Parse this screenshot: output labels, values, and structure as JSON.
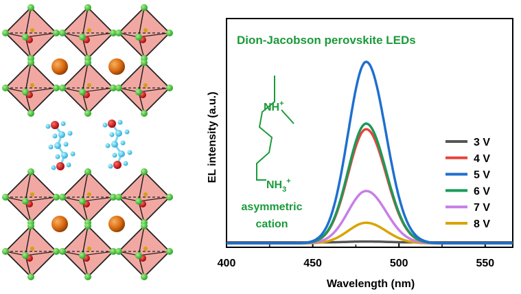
{
  "figure": {
    "title": "Dion-Jacobson perovskite LEDs",
    "title_color": "#1a9a3a",
    "cation_label": [
      "asymmetric",
      "cation"
    ],
    "cation_label_color": "#1a9a3a",
    "molecule_labels": {
      "top": "NH",
      "top_sup": "+",
      "bottom": "NH",
      "bottom_sub": "3",
      "bottom_sup": "+"
    }
  },
  "chart_data": {
    "type": "line",
    "title": "Dion-Jacobson perovskite LEDs",
    "xlabel": "Wavelength (nm)",
    "ylabel": "EL intensity (a.u.)",
    "xlim": [
      400,
      566
    ],
    "ylim": [
      0,
      1.0
    ],
    "xticks": [
      "400",
      "450",
      "500",
      "550"
    ],
    "legend_position": "right",
    "y_tick_labels": false,
    "peak_wavelength_nm": 481,
    "series": [
      {
        "name": "3 V",
        "color": "#555555",
        "peak": 0.02,
        "baseline": 0.015
      },
      {
        "name": "4 V",
        "color": "#e8443a",
        "peak": 0.62,
        "baseline": 0.01
      },
      {
        "name": "5 V",
        "color": "#1f6fd0",
        "peak": 0.98,
        "baseline": 0.01
      },
      {
        "name": "6 V",
        "color": "#1a9a5a",
        "peak": 0.65,
        "baseline": 0.01
      },
      {
        "name": "7 V",
        "color": "#c77ee8",
        "peak": 0.29,
        "baseline": 0.01
      },
      {
        "name": "8 V",
        "color": "#d9a400",
        "peak": 0.12,
        "baseline": 0.01
      }
    ]
  }
}
